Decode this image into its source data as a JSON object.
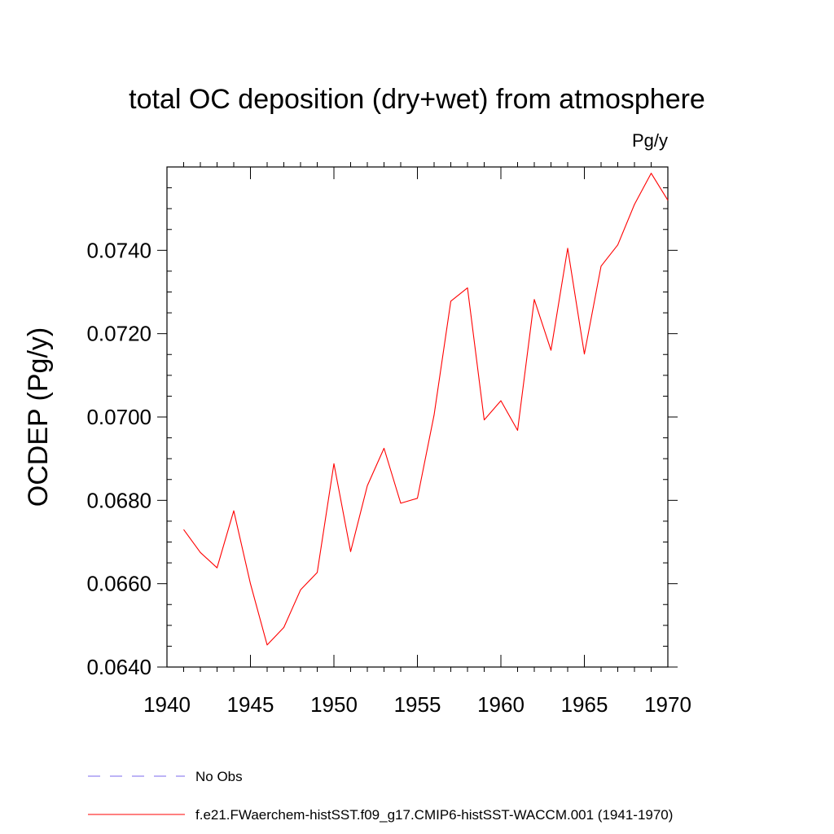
{
  "chart_data": {
    "type": "line",
    "title": "total OC deposition (dry+wet) from atmosphere",
    "units_label": "Pg/y",
    "ylabel": "OCDEP  (Pg/y)",
    "xlabel": "",
    "xlim": [
      1940,
      1970
    ],
    "ylim": [
      0.064,
      0.076
    ],
    "x_ticks": [
      1940,
      1945,
      1950,
      1955,
      1960,
      1965,
      1970
    ],
    "x_tick_labels": [
      "1940",
      "1945",
      "1950",
      "1955",
      "1960",
      "1965",
      "1970"
    ],
    "y_ticks": [
      0.064,
      0.066,
      0.068,
      0.07,
      0.072,
      0.074
    ],
    "y_tick_labels": [
      "0.0640",
      "0.0660",
      "0.0680",
      "0.0700",
      "0.0720",
      "0.0740"
    ],
    "grid": false,
    "legend_position": "bottom",
    "series": [
      {
        "name": "f.e21.FWaerchem-histSST.f09_g17.CMIP6-histSST-WACCM.001 (1941-1970)",
        "color": "#ff0000",
        "style": "solid",
        "x": [
          1941,
          1942,
          1943,
          1944,
          1945,
          1946,
          1947,
          1948,
          1949,
          1950,
          1951,
          1952,
          1953,
          1954,
          1955,
          1956,
          1957,
          1958,
          1959,
          1960,
          1961,
          1962,
          1963,
          1964,
          1965,
          1966,
          1967,
          1968,
          1969,
          1970
        ],
        "values": [
          0.0673,
          0.06675,
          0.06638,
          0.06775,
          0.066,
          0.06453,
          0.06495,
          0.06585,
          0.06627,
          0.06888,
          0.06677,
          0.06835,
          0.06925,
          0.06793,
          0.06805,
          0.07005,
          0.07278,
          0.0731,
          0.06993,
          0.07039,
          0.06968,
          0.07282,
          0.0716,
          0.07405,
          0.07151,
          0.07362,
          0.07413,
          0.0751,
          0.07585,
          0.0752
        ]
      }
    ],
    "legend": [
      {
        "label": "No Obs",
        "color": "#7b68ee",
        "style": "dashed"
      },
      {
        "label": "f.e21.FWaerchem-histSST.f09_g17.CMIP6-histSST-WACCM.001 (1941-1970)",
        "color": "#ff0000",
        "style": "solid"
      }
    ]
  }
}
